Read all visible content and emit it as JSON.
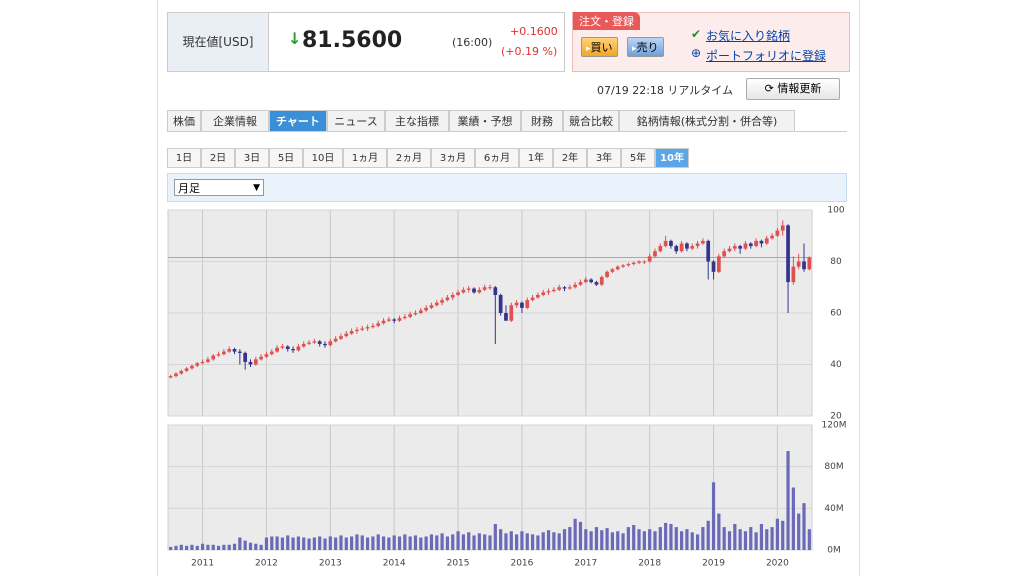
{
  "quote": {
    "label": "現在値[USD]",
    "arrow": "↓",
    "price": "81.5600",
    "time": "(16:00)",
    "change": "+0.1600",
    "change_pct": "(+0.19 %)"
  },
  "order": {
    "title": "注文・登録",
    "buy": "買い",
    "sell": "売り",
    "favorite": "お気に入り銘柄",
    "portfolio": "ポートフォリオに登録"
  },
  "status": {
    "timestamp": "07/19 22:18 リアルタイム",
    "refresh": "情報更新"
  },
  "tabs": [
    "株価",
    "企業情報",
    "チャート",
    "ニュース",
    "主な指標",
    "業績・予想",
    "財務",
    "競合比較",
    "銘柄情報(株式分割・併合等)"
  ],
  "periods": [
    "1日",
    "2日",
    "3日",
    "5日",
    "10日",
    "1ヵ月",
    "2ヵ月",
    "3ヵ月",
    "6ヵ月",
    "1年",
    "2年",
    "3年",
    "5年",
    "10年"
  ],
  "interval": "月足",
  "chart_data": {
    "type": "candlestick",
    "up_color": "#e05050",
    "down_color": "#34348f",
    "volume_color": "#6a6ab8",
    "ref_line": 81.56,
    "ref_line_color": "#f08a8a",
    "xlim": [
      -0.5,
      120.5
    ],
    "xticks": [
      {
        "value": 6,
        "label": "2011"
      },
      {
        "value": 18,
        "label": "2012"
      },
      {
        "value": 30,
        "label": "2013"
      },
      {
        "value": 42,
        "label": "2014"
      },
      {
        "value": 54,
        "label": "2015"
      },
      {
        "value": 66,
        "label": "2016"
      },
      {
        "value": 78,
        "label": "2017"
      },
      {
        "value": 90,
        "label": "2018"
      },
      {
        "value": 102,
        "label": "2019"
      },
      {
        "value": 114,
        "label": "2020"
      }
    ],
    "ylim": [
      20,
      100
    ],
    "yticks": [
      20,
      40,
      60,
      80,
      100
    ],
    "volume_ylim": [
      0,
      120
    ],
    "volume_yticks": [
      {
        "value": 0,
        "label": "0M"
      },
      {
        "value": 40,
        "label": "40M"
      },
      {
        "value": 80,
        "label": "80M"
      },
      {
        "value": 120,
        "label": "120M"
      }
    ],
    "candles": [
      [
        35,
        36,
        34.5,
        35.5,
        3
      ],
      [
        35.5,
        37,
        35,
        36.5,
        4
      ],
      [
        36.5,
        38,
        36,
        37.5,
        5
      ],
      [
        37.5,
        39,
        37,
        38.5,
        4
      ],
      [
        38.5,
        40,
        38,
        39.5,
        5
      ],
      [
        39.5,
        41,
        39,
        40.5,
        4
      ],
      [
        40.5,
        42,
        40,
        41,
        6
      ],
      [
        41,
        43,
        40.5,
        42,
        5
      ],
      [
        42,
        44,
        41.5,
        43.5,
        5
      ],
      [
        43.5,
        45,
        43,
        44,
        4
      ],
      [
        44,
        46,
        43.5,
        45,
        5
      ],
      [
        45,
        47,
        44.5,
        46,
        5
      ],
      [
        46,
        46.5,
        44,
        45,
        6
      ],
      [
        45,
        46,
        40,
        44.5,
        12
      ],
      [
        44.5,
        45,
        38,
        41,
        9
      ],
      [
        41,
        42,
        39,
        40,
        7
      ],
      [
        40,
        43,
        39.5,
        42,
        6
      ],
      [
        42,
        44,
        41.5,
        43,
        5
      ],
      [
        43,
        45,
        42.5,
        44,
        12
      ],
      [
        44,
        46,
        43.5,
        45,
        13
      ],
      [
        45,
        47.5,
        44.5,
        46.5,
        13
      ],
      [
        46.5,
        48,
        46,
        47,
        12
      ],
      [
        47,
        47.5,
        45,
        46,
        14
      ],
      [
        46,
        47,
        44.5,
        45.5,
        12
      ],
      [
        45.5,
        48,
        45,
        47,
        13
      ],
      [
        47,
        49,
        46.5,
        48,
        12
      ],
      [
        48,
        49.5,
        47.5,
        48.5,
        11
      ],
      [
        48.5,
        50,
        48,
        49,
        12
      ],
      [
        49,
        49.5,
        47,
        48,
        13
      ],
      [
        48,
        49,
        46.5,
        47.5,
        11
      ],
      [
        47.5,
        50,
        47,
        49,
        13
      ],
      [
        49,
        51,
        48.5,
        50,
        12
      ],
      [
        50,
        52,
        49.5,
        51,
        14
      ],
      [
        51,
        53,
        50.5,
        52,
        12
      ],
      [
        52,
        54,
        51.5,
        53,
        13
      ],
      [
        53,
        54.5,
        52,
        53.5,
        15
      ],
      [
        53.5,
        55,
        53,
        54,
        14
      ],
      [
        54,
        55.5,
        53,
        54.5,
        12
      ],
      [
        54.5,
        56,
        54,
        55,
        13
      ],
      [
        55,
        57,
        54.5,
        56,
        15
      ],
      [
        56,
        58,
        55.5,
        57,
        13
      ],
      [
        57,
        58.5,
        56.5,
        57.5,
        12
      ],
      [
        57.5,
        58,
        56,
        57,
        14
      ],
      [
        57,
        59,
        56.5,
        58,
        13
      ],
      [
        58,
        59.5,
        57.5,
        58.5,
        15
      ],
      [
        58.5,
        60.5,
        58,
        59.5,
        13
      ],
      [
        59.5,
        61,
        59,
        60,
        14
      ],
      [
        60,
        62,
        59.5,
        61,
        12
      ],
      [
        61,
        63,
        60.5,
        62,
        13
      ],
      [
        62,
        64,
        61.5,
        63,
        15
      ],
      [
        63,
        65,
        62.5,
        64,
        14
      ],
      [
        64,
        66,
        63,
        65,
        16
      ],
      [
        65,
        67,
        64.5,
        66,
        13
      ],
      [
        66,
        68,
        65,
        67,
        15
      ],
      [
        67,
        69,
        66.5,
        68,
        18
      ],
      [
        68,
        70,
        67.5,
        69,
        15
      ],
      [
        69,
        70.5,
        68,
        69.5,
        17
      ],
      [
        69.5,
        70,
        67.5,
        68,
        14
      ],
      [
        68,
        70,
        67.5,
        69,
        16
      ],
      [
        69,
        71,
        68.5,
        70,
        15
      ],
      [
        70,
        71,
        69,
        70,
        14
      ],
      [
        70,
        70.5,
        48,
        67,
        25
      ],
      [
        67,
        67.5,
        59,
        60,
        20
      ],
      [
        60,
        63,
        57,
        57,
        16
      ],
      [
        57,
        64,
        56.5,
        63,
        18
      ],
      [
        63,
        65,
        62,
        64,
        15
      ],
      [
        64,
        64.5,
        60,
        62,
        18
      ],
      [
        62,
        66,
        61.5,
        65,
        16
      ],
      [
        65,
        67,
        64.5,
        66,
        15
      ],
      [
        66,
        68,
        65.5,
        67,
        14
      ],
      [
        67,
        69,
        66.5,
        68,
        17
      ],
      [
        68,
        69.5,
        67,
        68.5,
        19
      ],
      [
        68.5,
        70,
        68,
        69,
        17
      ],
      [
        69,
        71,
        68.5,
        70,
        16
      ],
      [
        70,
        70.5,
        68.5,
        69.5,
        20
      ],
      [
        69.5,
        71,
        69,
        70,
        22
      ],
      [
        70,
        72,
        69.5,
        71,
        30
      ],
      [
        71,
        73,
        70.5,
        72,
        27
      ],
      [
        72,
        74,
        71.5,
        73,
        20
      ],
      [
        73,
        73.5,
        71.5,
        72,
        18
      ],
      [
        72,
        72.5,
        70.5,
        71,
        22
      ],
      [
        71,
        74.5,
        70.5,
        74,
        19
      ],
      [
        74,
        76.5,
        73.5,
        76,
        21
      ],
      [
        76,
        77.5,
        75.5,
        77,
        17
      ],
      [
        77,
        78.5,
        76.5,
        78,
        18
      ],
      [
        78,
        79,
        77.5,
        78.5,
        16
      ],
      [
        78.5,
        79.5,
        78,
        79,
        22
      ],
      [
        79,
        80,
        78.5,
        79.5,
        24
      ],
      [
        79.5,
        80.5,
        79,
        80,
        20
      ],
      [
        80,
        80.5,
        79,
        80,
        18
      ],
      [
        80,
        83,
        79.5,
        82,
        20
      ],
      [
        82,
        85,
        81.5,
        84,
        18
      ],
      [
        84,
        87,
        83.5,
        86,
        22
      ],
      [
        86,
        90,
        85.5,
        88,
        26
      ],
      [
        88,
        88.5,
        85,
        86,
        25
      ],
      [
        86,
        86.5,
        83,
        84,
        22
      ],
      [
        84,
        88,
        83.5,
        87,
        18
      ],
      [
        87,
        87.5,
        84,
        85,
        20
      ],
      [
        85,
        87,
        84.5,
        86,
        17
      ],
      [
        86,
        88,
        85,
        87,
        15
      ],
      [
        87,
        89,
        86.5,
        88,
        22
      ],
      [
        88,
        88.5,
        73,
        80,
        28
      ],
      [
        80,
        80.5,
        73,
        76,
        65
      ],
      [
        76,
        83,
        75.5,
        82,
        35
      ],
      [
        82,
        85,
        81.5,
        84,
        22
      ],
      [
        84,
        86,
        83.5,
        85,
        18
      ],
      [
        85,
        87,
        84,
        86,
        25
      ],
      [
        86,
        86.5,
        83,
        85,
        20
      ],
      [
        85,
        88,
        84.5,
        87,
        18
      ],
      [
        87,
        87.5,
        85,
        86,
        22
      ],
      [
        86,
        89,
        85.5,
        88,
        17
      ],
      [
        88,
        88.5,
        85.5,
        87,
        25
      ],
      [
        87,
        90,
        86.5,
        89,
        20
      ],
      [
        89,
        91,
        88.5,
        90,
        22
      ],
      [
        90,
        93,
        89.5,
        92,
        30
      ],
      [
        92,
        96,
        90,
        94,
        28
      ],
      [
        94,
        94.5,
        60,
        72,
        95
      ],
      [
        72,
        82,
        71,
        78,
        60
      ],
      [
        78,
        83,
        77,
        80,
        35
      ],
      [
        80,
        87,
        76,
        77,
        45
      ],
      [
        77,
        82,
        76.5,
        81.56,
        20
      ]
    ]
  }
}
